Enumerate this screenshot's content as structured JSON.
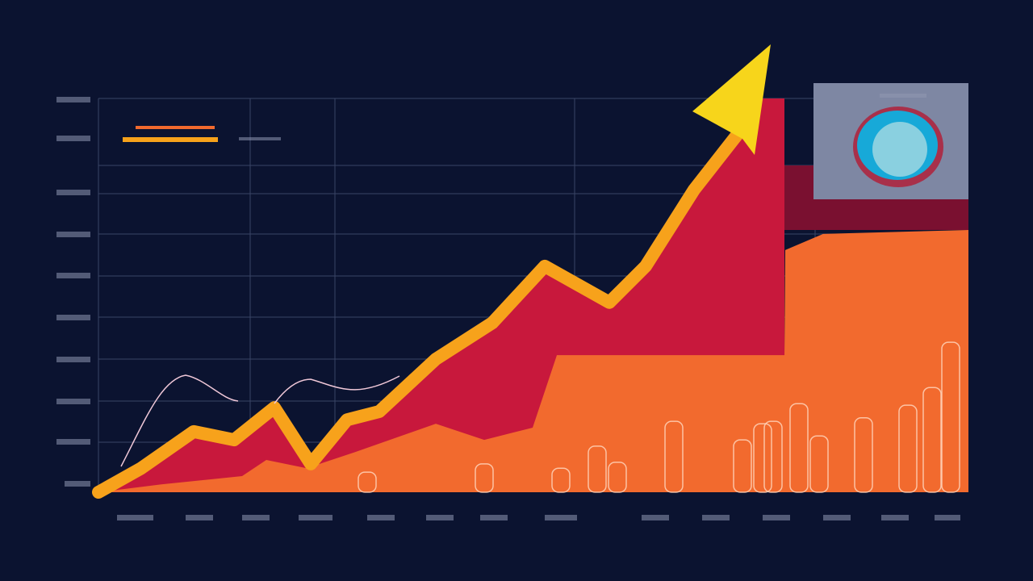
{
  "chart_data": {
    "type": "area",
    "xlim": [
      0,
      1078
    ],
    "ylim": [
      0,
      100
    ],
    "series": [
      {
        "type": "area",
        "color": "#c8183c",
        "x": [
          0,
          53,
          118,
          168,
          218,
          263,
          308,
          348,
          418,
          488,
          553,
          633,
          678,
          738,
          793,
          818,
          850
        ],
        "values": [
          0,
          6.1,
          15.4,
          13.3,
          21.5,
          7.2,
          18.4,
          20.5,
          33.8,
          43,
          57.4,
          48.2,
          57.4,
          76.8,
          91.2,
          100,
          100
        ]
      },
      {
        "type": "area",
        "color": "#f26a2e",
        "x": [
          0,
          78,
          178,
          208,
          258,
          318,
          418,
          478,
          538,
          568,
          850,
          851,
          898,
          1078
        ],
        "values": [
          0,
          2,
          4.1,
          8.2,
          6.1,
          10.2,
          17.4,
          13.3,
          16.4,
          34.8,
          34.8,
          61.5,
          65.6,
          66.6
        ]
      },
      {
        "type": "bar",
        "color": "#ffd2b8",
        "x": [
          333,
          478,
          573,
          618,
          643,
          713,
          798,
          823,
          836,
          868,
          893,
          948,
          1003,
          1033,
          1056
        ],
        "values": [
          5.1,
          7.2,
          6.1,
          11.7,
          7.6,
          18,
          13.3,
          17.4,
          18,
          22.5,
          14.3,
          18.9,
          22.1,
          26.6,
          38.1
        ]
      },
      {
        "type": "line",
        "color": "#f7a21b",
        "x": [
          0,
          53,
          118,
          168,
          218,
          263,
          308,
          348,
          418,
          488,
          553,
          633,
          678,
          738,
          793
        ],
        "values": [
          0,
          6.1,
          15.4,
          13.3,
          21.5,
          7.2,
          18.4,
          20.5,
          33.8,
          43,
          57.4,
          48.2,
          57.4,
          76.8,
          91.2
        ]
      }
    ]
  }
}
